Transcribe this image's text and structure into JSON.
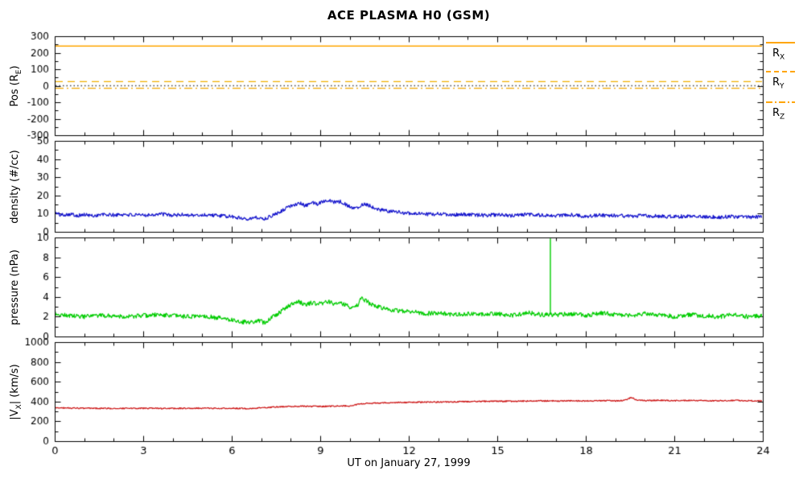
{
  "chart_data": {
    "type": "line",
    "title": "ACE PLASMA H0 (GSM)",
    "xlabel": "UT on January 27, 1999",
    "x_range": [
      0,
      24
    ],
    "x_major_ticks": [
      0,
      3,
      6,
      9,
      12,
      15,
      18,
      21,
      24
    ],
    "x_minor_step": 1,
    "background": "#ffffff",
    "panels": [
      {
        "id": "position",
        "ylabel": {
          "pre": "Pos (R",
          "sub": "E",
          "post": ")"
        },
        "ylim": [
          -300,
          300
        ],
        "yticks": [
          -300,
          -200,
          -100,
          0,
          100,
          200,
          300
        ],
        "y_minor_div": 2,
        "ref_lines": [
          {
            "name": "RX",
            "y": 240,
            "dash": "solid",
            "color": "#ffa500"
          },
          {
            "name": "RY",
            "y": 25,
            "dash": "dashed",
            "color": "#f2b000"
          },
          {
            "name": "RZ",
            "y": -15,
            "dash": "dashdot",
            "color": "#f2a800"
          },
          {
            "name": "zero",
            "y": 0,
            "dash": "dotted",
            "color": "#444444"
          }
        ]
      },
      {
        "id": "density",
        "ylabel": {
          "pre": "density (#/cc)",
          "sub": "",
          "post": ""
        },
        "ylim": [
          0,
          50
        ],
        "yticks": [
          0,
          10,
          20,
          30,
          40,
          50
        ],
        "y_minor_div": 2,
        "series": "density"
      },
      {
        "id": "pressure",
        "ylabel": {
          "pre": "pressure (nPa)",
          "sub": "",
          "post": ""
        },
        "ylim": [
          0,
          10
        ],
        "yticks": [
          0,
          2,
          4,
          6,
          8,
          10
        ],
        "y_minor_div": 2,
        "series": "pressure"
      },
      {
        "id": "velocity",
        "ylabel": {
          "pre": "|V",
          "sub": "X",
          "post": "| (km/s)"
        },
        "ylim": [
          0,
          1000
        ],
        "yticks": [
          0,
          200,
          400,
          600,
          800,
          1000
        ],
        "y_minor_div": 2,
        "series": "velocity"
      }
    ],
    "series": {
      "density": {
        "color": "#1212cc",
        "noise": 1.0,
        "seed": 101,
        "trend": [
          [
            0,
            10.5
          ],
          [
            0.2,
            9.3
          ],
          [
            0.5,
            9.8
          ],
          [
            0.8,
            9.0
          ],
          [
            1,
            9.4
          ],
          [
            1.3,
            8.8
          ],
          [
            1.6,
            9.5
          ],
          [
            2,
            9.2
          ],
          [
            2.4,
            9.6
          ],
          [
            2.8,
            9.0
          ],
          [
            3.2,
            9.4
          ],
          [
            3.6,
            9.8
          ],
          [
            4,
            9.1
          ],
          [
            4.4,
            9.5
          ],
          [
            4.8,
            9.0
          ],
          [
            5.2,
            9.4
          ],
          [
            5.6,
            8.8
          ],
          [
            6,
            8.3
          ],
          [
            6.3,
            7.6
          ],
          [
            6.6,
            7.3
          ],
          [
            6.9,
            7.9
          ],
          [
            7.1,
            7.1
          ],
          [
            7.3,
            8.4
          ],
          [
            7.6,
            10.8
          ],
          [
            7.9,
            13.5
          ],
          [
            8.1,
            15.0
          ],
          [
            8.3,
            15.8
          ],
          [
            8.5,
            14.2
          ],
          [
            8.7,
            16.2
          ],
          [
            8.9,
            15.2
          ],
          [
            9.1,
            17.0
          ],
          [
            9.3,
            17.6
          ],
          [
            9.5,
            16.2
          ],
          [
            9.7,
            16.6
          ],
          [
            9.9,
            14.8
          ],
          [
            10.1,
            12.8
          ],
          [
            10.3,
            13.8
          ],
          [
            10.5,
            15.6
          ],
          [
            10.7,
            14.2
          ],
          [
            10.9,
            12.6
          ],
          [
            11.2,
            11.6
          ],
          [
            11.5,
            11.0
          ],
          [
            11.8,
            10.6
          ],
          [
            12.2,
            10.0
          ],
          [
            12.6,
            9.6
          ],
          [
            13,
            9.9
          ],
          [
            13.5,
            9.3
          ],
          [
            14,
            9.6
          ],
          [
            14.5,
            9.1
          ],
          [
            15,
            9.3
          ],
          [
            15.5,
            8.9
          ],
          [
            16,
            9.6
          ],
          [
            16.5,
            9.1
          ],
          [
            17,
            8.9
          ],
          [
            17.5,
            9.3
          ],
          [
            18,
            8.6
          ],
          [
            18.5,
            9.1
          ],
          [
            19,
            8.9
          ],
          [
            19.5,
            8.6
          ],
          [
            20,
            8.9
          ],
          [
            20.5,
            8.6
          ],
          [
            21,
            8.3
          ],
          [
            21.5,
            8.6
          ],
          [
            22,
            8.4
          ],
          [
            22.5,
            8.1
          ],
          [
            23,
            8.4
          ],
          [
            23.5,
            8.1
          ],
          [
            24,
            8.3
          ]
        ]
      },
      "pressure": {
        "color": "#00cc00",
        "noise": 0.22,
        "seed": 202,
        "spikes": [
          {
            "x": 16.8,
            "y": 9.9
          }
        ],
        "trend": [
          [
            0,
            2.3
          ],
          [
            0.5,
            2.1
          ],
          [
            1,
            2.0
          ],
          [
            1.5,
            2.1
          ],
          [
            2,
            2.1
          ],
          [
            2.5,
            2.0
          ],
          [
            3,
            2.1
          ],
          [
            3.5,
            2.2
          ],
          [
            4,
            2.1
          ],
          [
            4.5,
            2.0
          ],
          [
            5,
            2.1
          ],
          [
            5.5,
            1.9
          ],
          [
            6,
            1.7
          ],
          [
            6.3,
            1.5
          ],
          [
            6.6,
            1.4
          ],
          [
            6.9,
            1.6
          ],
          [
            7.1,
            1.4
          ],
          [
            7.3,
            1.8
          ],
          [
            7.6,
            2.4
          ],
          [
            7.9,
            3.0
          ],
          [
            8.1,
            3.4
          ],
          [
            8.3,
            3.5
          ],
          [
            8.5,
            3.2
          ],
          [
            8.7,
            3.4
          ],
          [
            8.9,
            3.3
          ],
          [
            9.1,
            3.4
          ],
          [
            9.3,
            3.5
          ],
          [
            9.5,
            3.3
          ],
          [
            9.7,
            3.4
          ],
          [
            9.9,
            3.1
          ],
          [
            10.1,
            2.9
          ],
          [
            10.3,
            3.3
          ],
          [
            10.4,
            3.9
          ],
          [
            10.6,
            3.5
          ],
          [
            10.8,
            3.1
          ],
          [
            11.1,
            2.9
          ],
          [
            11.4,
            2.7
          ],
          [
            11.8,
            2.6
          ],
          [
            12.2,
            2.5
          ],
          [
            12.6,
            2.3
          ],
          [
            13,
            2.4
          ],
          [
            13.5,
            2.2
          ],
          [
            14,
            2.3
          ],
          [
            14.5,
            2.2
          ],
          [
            15,
            2.3
          ],
          [
            15.5,
            2.1
          ],
          [
            16,
            2.4
          ],
          [
            16.5,
            2.2
          ],
          [
            17,
            2.2
          ],
          [
            17.5,
            2.3
          ],
          [
            18,
            2.1
          ],
          [
            18.5,
            2.4
          ],
          [
            19,
            2.2
          ],
          [
            19.5,
            2.1
          ],
          [
            20,
            2.3
          ],
          [
            20.5,
            2.2
          ],
          [
            21,
            2.0
          ],
          [
            21.5,
            2.2
          ],
          [
            22,
            2.1
          ],
          [
            22.5,
            2.0
          ],
          [
            23,
            2.2
          ],
          [
            23.5,
            2.0
          ],
          [
            24,
            2.1
          ]
        ]
      },
      "velocity": {
        "color": "#cc1111",
        "noise": 6,
        "seed": 303,
        "trend": [
          [
            0,
            338
          ],
          [
            0.5,
            334
          ],
          [
            1,
            332
          ],
          [
            1.5,
            331
          ],
          [
            2,
            330
          ],
          [
            2.5,
            331
          ],
          [
            3,
            332
          ],
          [
            3.5,
            330
          ],
          [
            4,
            330
          ],
          [
            4.5,
            332
          ],
          [
            5,
            333
          ],
          [
            5.5,
            331
          ],
          [
            6,
            332
          ],
          [
            6.5,
            330
          ],
          [
            7,
            335
          ],
          [
            7.5,
            345
          ],
          [
            8,
            350
          ],
          [
            8.5,
            352
          ],
          [
            9,
            350
          ],
          [
            9.5,
            354
          ],
          [
            10,
            356
          ],
          [
            10.3,
            374
          ],
          [
            10.6,
            380
          ],
          [
            11,
            385
          ],
          [
            11.5,
            390
          ],
          [
            12,
            392
          ],
          [
            12.5,
            394
          ],
          [
            13,
            395
          ],
          [
            13.5,
            397
          ],
          [
            14,
            400
          ],
          [
            14.5,
            402
          ],
          [
            15,
            404
          ],
          [
            15.5,
            403
          ],
          [
            16,
            405
          ],
          [
            16.5,
            407
          ],
          [
            17,
            405
          ],
          [
            17.5,
            407
          ],
          [
            18,
            405
          ],
          [
            18.5,
            409
          ],
          [
            19,
            407
          ],
          [
            19.3,
            411
          ],
          [
            19.55,
            442
          ],
          [
            19.7,
            418
          ],
          [
            20,
            410
          ],
          [
            20.5,
            412
          ],
          [
            21,
            408
          ],
          [
            21.5,
            411
          ],
          [
            22,
            409
          ],
          [
            22.5,
            408
          ],
          [
            23,
            411
          ],
          [
            23.5,
            408
          ],
          [
            24,
            406
          ]
        ]
      }
    },
    "legend": {
      "color": "#ffa500",
      "items": [
        {
          "main": "R",
          "sub": "X",
          "line": "solid"
        },
        {
          "main": "R",
          "sub": "Y",
          "line": "dashed"
        },
        {
          "main": "R",
          "sub": "Z",
          "line": "dashdot"
        }
      ]
    }
  }
}
